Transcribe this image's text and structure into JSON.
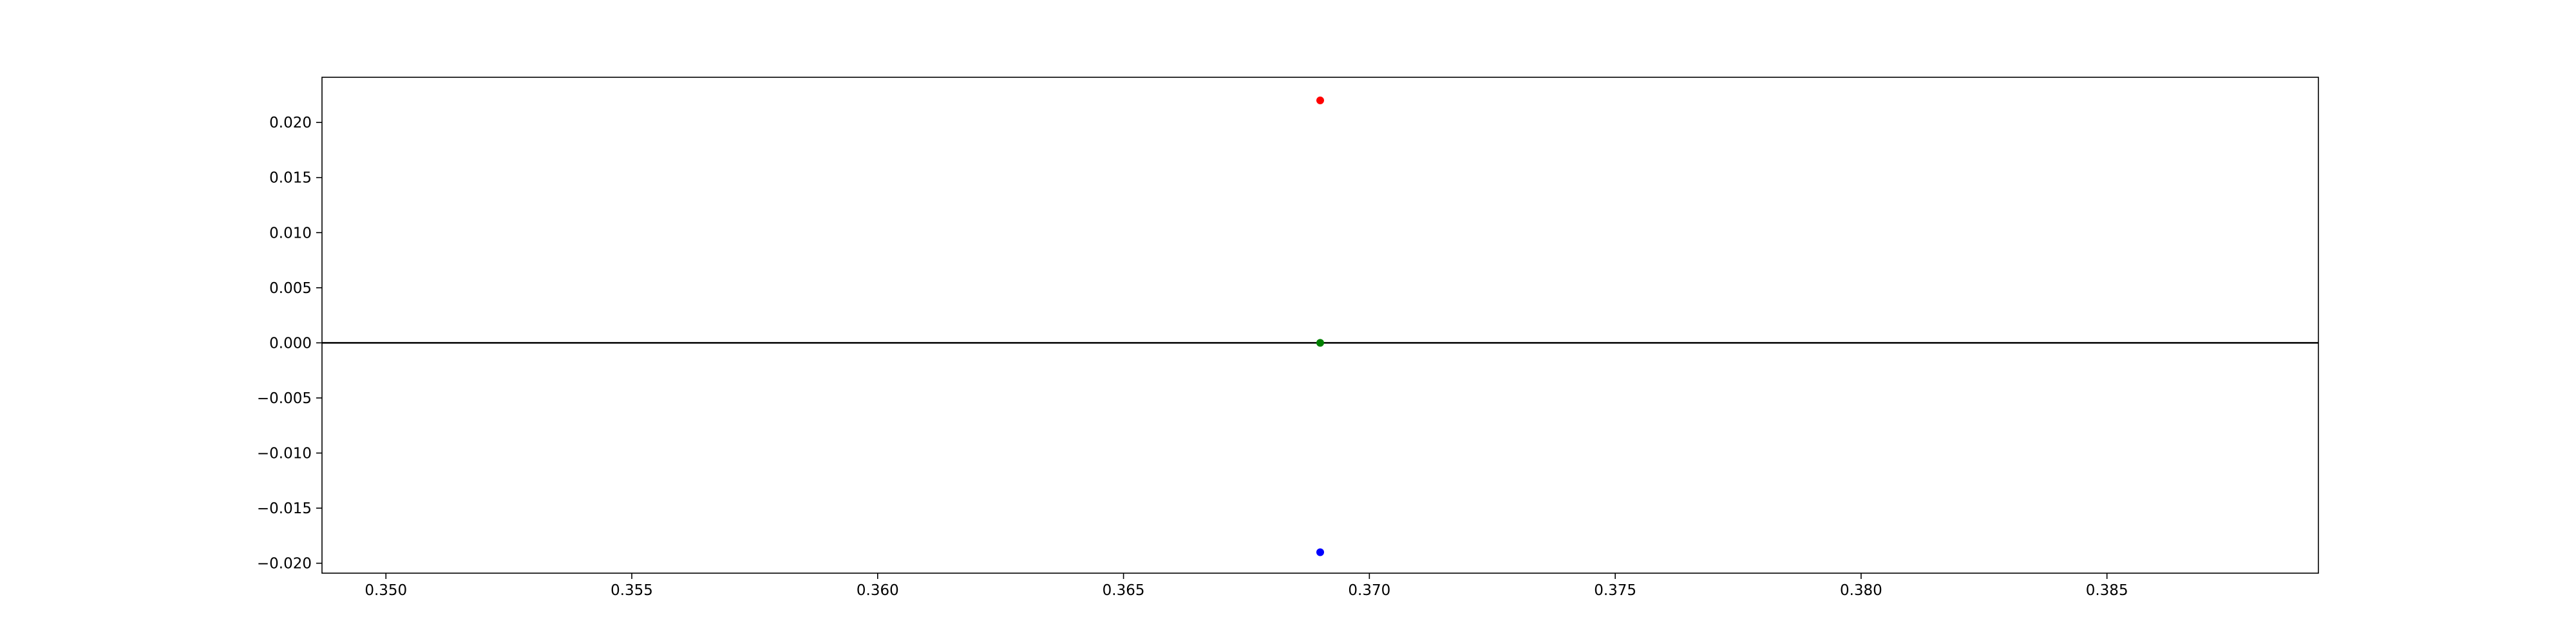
{
  "chart_data": {
    "type": "scatter",
    "xlim": [
      0.3487,
      0.3893
    ],
    "ylim": [
      -0.0209,
      0.0241
    ],
    "x_ticks": [
      {
        "value": 0.35,
        "label": "0.350"
      },
      {
        "value": 0.355,
        "label": "0.355"
      },
      {
        "value": 0.36,
        "label": "0.360"
      },
      {
        "value": 0.365,
        "label": "0.365"
      },
      {
        "value": 0.37,
        "label": "0.370"
      },
      {
        "value": 0.375,
        "label": "0.375"
      },
      {
        "value": 0.38,
        "label": "0.380"
      },
      {
        "value": 0.385,
        "label": "0.385"
      }
    ],
    "y_ticks": [
      {
        "value": 0.02,
        "label": "0.020"
      },
      {
        "value": 0.015,
        "label": "0.015"
      },
      {
        "value": 0.01,
        "label": "0.010"
      },
      {
        "value": 0.005,
        "label": "0.005"
      },
      {
        "value": 0.0,
        "label": "0.000"
      },
      {
        "value": -0.005,
        "label": "−0.005"
      },
      {
        "value": -0.01,
        "label": "−0.010"
      },
      {
        "value": -0.015,
        "label": "−0.015"
      },
      {
        "value": -0.02,
        "label": "−0.020"
      }
    ],
    "horizontal_line": {
      "y": 0.0,
      "color": "#000000"
    },
    "series": [
      {
        "color": "#ff0000",
        "points": [
          {
            "x": 0.369,
            "y": 0.022
          }
        ]
      },
      {
        "color": "#008000",
        "points": [
          {
            "x": 0.369,
            "y": 0.0
          }
        ]
      },
      {
        "color": "#0000ff",
        "points": [
          {
            "x": 0.369,
            "y": -0.019
          }
        ]
      }
    ],
    "grid": false,
    "legend": "none"
  }
}
